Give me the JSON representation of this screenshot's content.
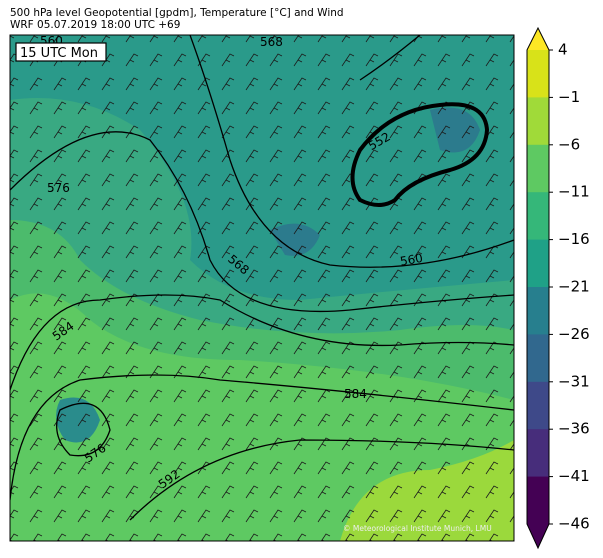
{
  "header": {
    "title": "500 hPa level Geopotential [gpdm], Temperature [°C] and Wind",
    "subtitle": "WRF 05.07.2019 18:00 UTC +69"
  },
  "map": {
    "time_label": "15 UTC Mon",
    "contour_labels": [
      "560",
      "568",
      "552",
      "576",
      "568",
      "560",
      "584",
      "584",
      "576",
      "592"
    ],
    "credit": "© Meteorological Institute Munich, LMU"
  },
  "colorbar": {
    "ticks": [
      "4",
      "−1",
      "−6",
      "−11",
      "−16",
      "−21",
      "−26",
      "−31",
      "−36",
      "−41",
      "−46"
    ],
    "colors": [
      "#fde725",
      "#d8e219",
      "#a0da39",
      "#5ec962",
      "#35b779",
      "#1fa187",
      "#277f8e",
      "#31688e",
      "#3e4989",
      "#472d7b",
      "#440154",
      "#440154"
    ]
  }
}
